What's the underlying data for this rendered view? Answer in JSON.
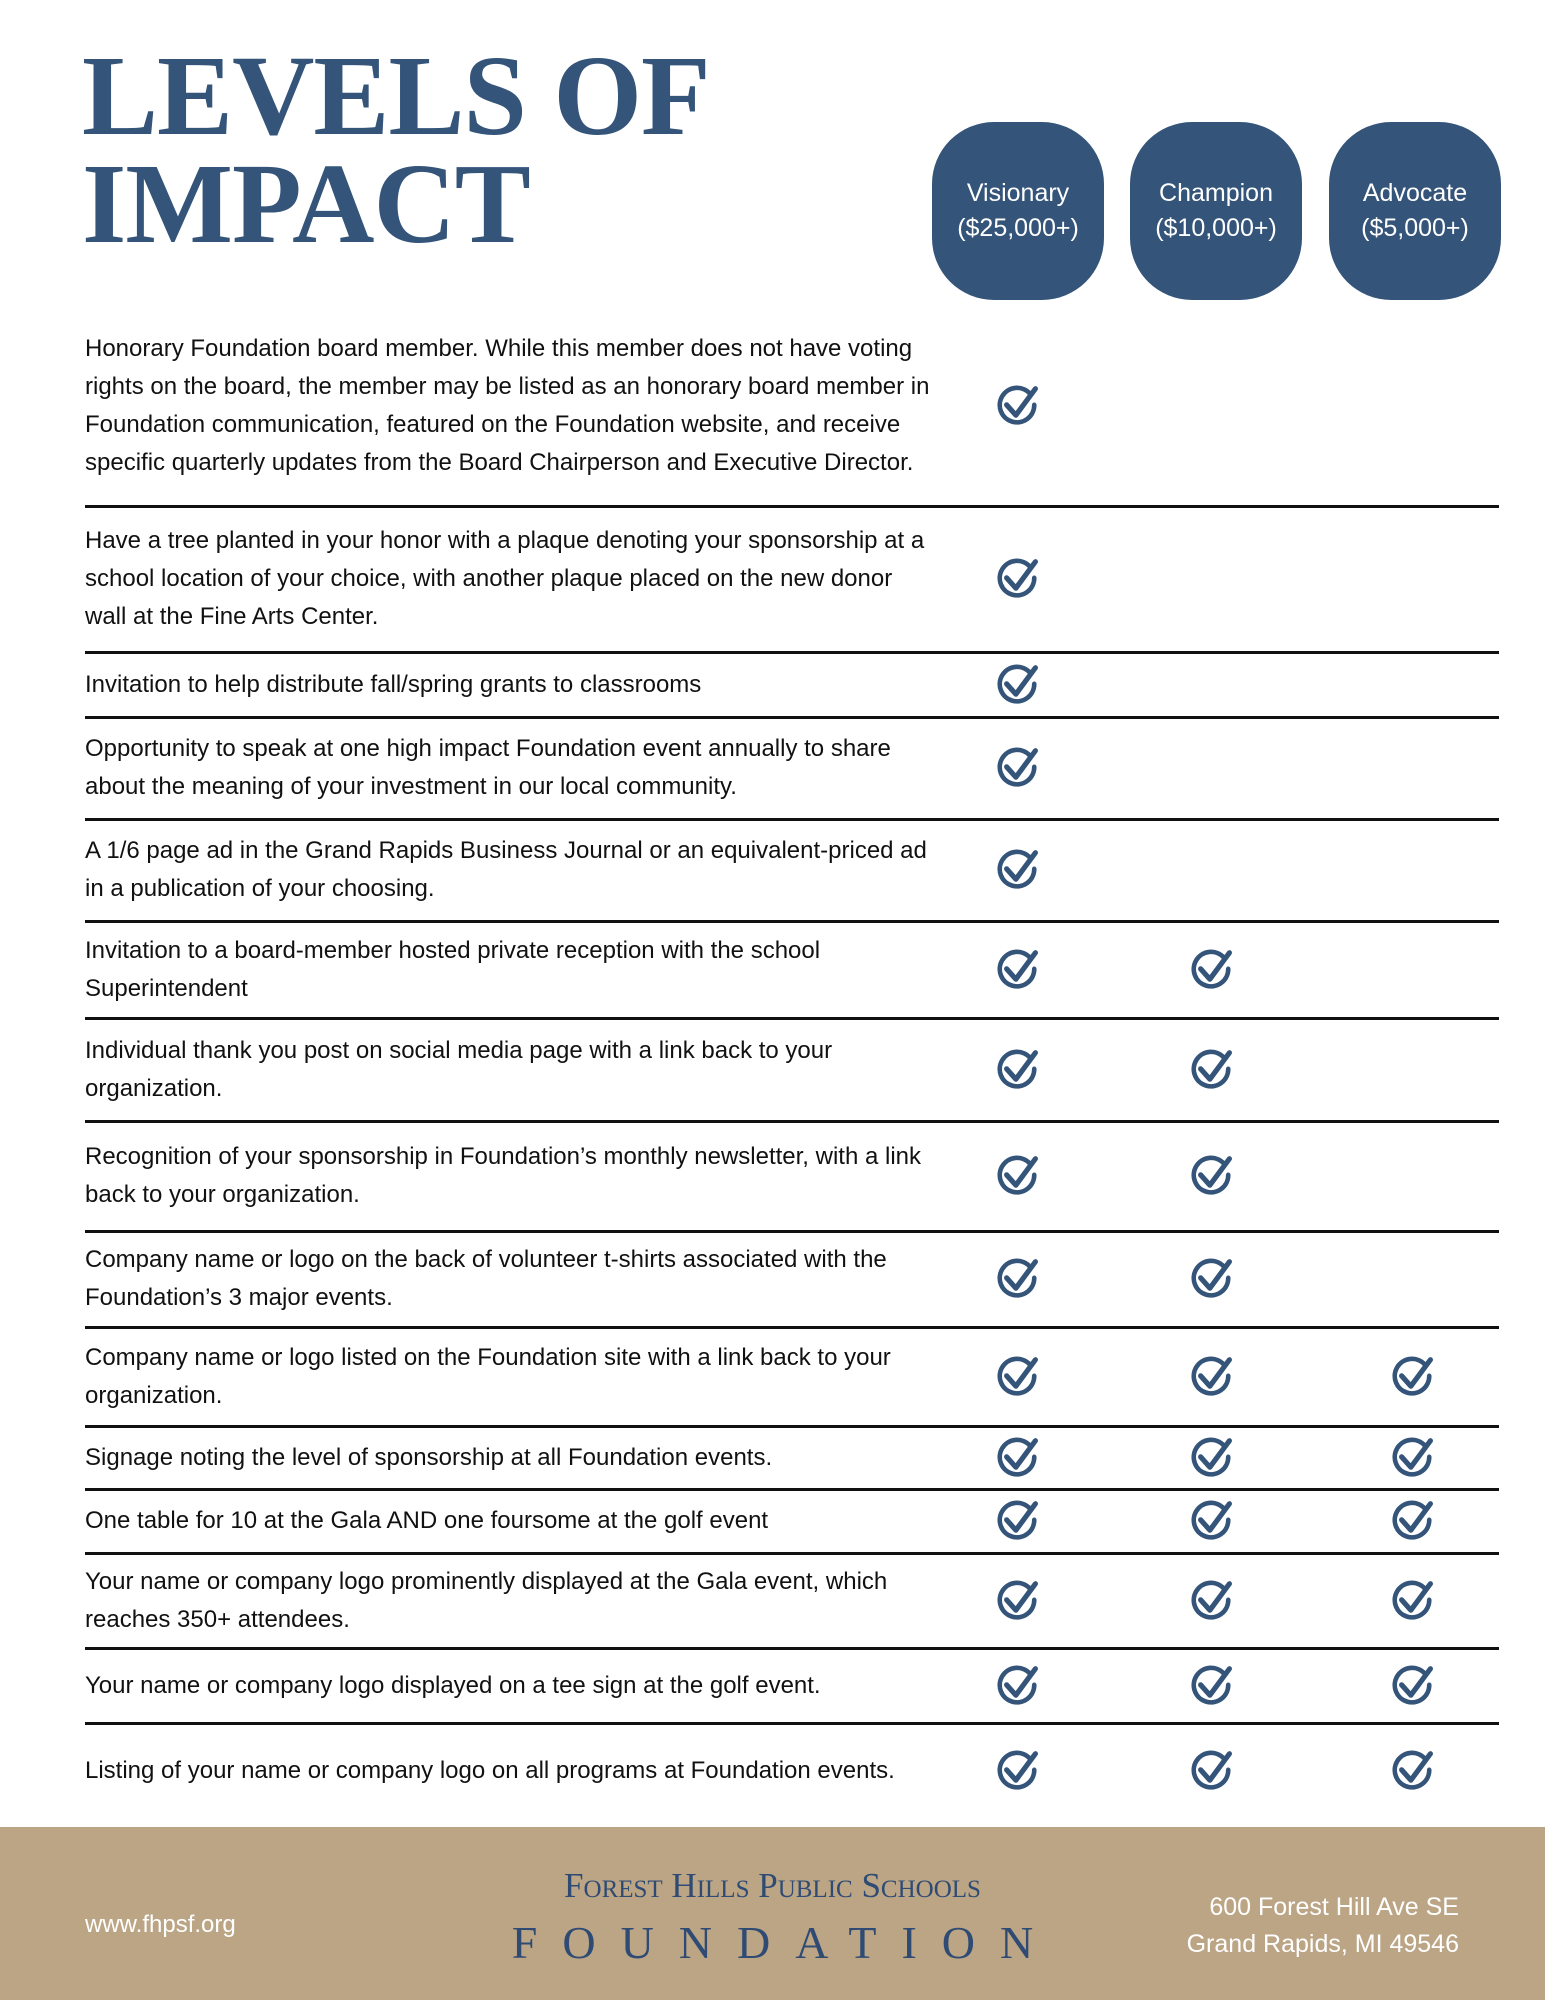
{
  "header": {
    "title": [
      "LEVELS OF",
      "IMPACT"
    ]
  },
  "tiers": [
    {
      "name": "Visionary",
      "amount": "($25,000+)"
    },
    {
      "name": "Champion",
      "amount": "($10,000+)"
    },
    {
      "name": "Advocate",
      "amount": "($5,000+)"
    }
  ],
  "table": {
    "rows": [
      {
        "text": "Honorary Foundation board member. While this member does not have voting rights on the board, the member may be listed as an honorary board member in Foundation communication, featured on the Foundation website, and receive specific quarterly updates from the Board Chairperson and Executive Director.",
        "levels": [
          true,
          false,
          false
        ]
      },
      {
        "text": "Have a tree planted in your honor with a plaque denoting your sponsorship at a school location of your choice, with another plaque placed on the new donor wall at the Fine Arts Center.",
        "levels": [
          true,
          false,
          false
        ]
      },
      {
        "text": "Invitation to help distribute fall/spring grants to classrooms",
        "levels": [
          true,
          false,
          false
        ]
      },
      {
        "text": "Opportunity to speak at one high impact Foundation event annually to share about the meaning of your investment in our local community.",
        "levels": [
          true,
          false,
          false
        ]
      },
      {
        "text": "A 1/6 page ad in the Grand Rapids Business Journal or an equivalent-priced ad in a publication of your choosing.",
        "levels": [
          true,
          false,
          false
        ]
      },
      {
        "text": "Invitation to a board-member hosted private reception with the school Superintendent",
        "levels": [
          true,
          true,
          false
        ]
      },
      {
        "text": "Individual thank you post on social media page with a link back to your organization.",
        "levels": [
          true,
          true,
          false
        ]
      },
      {
        "text": "Recognition of your sponsorship in Foundation’s monthly newsletter, with a link back to your organization.",
        "levels": [
          true,
          true,
          false
        ]
      },
      {
        "text": "Company name or logo on the back of volunteer t-shirts associated with the Foundation’s 3 major events.",
        "levels": [
          true,
          true,
          false
        ]
      },
      {
        "text": "Company name or logo listed on the Foundation site with a link back to your organization.",
        "levels": [
          true,
          true,
          true
        ]
      },
      {
        "text": "Signage noting the level of sponsorship at all Foundation events.",
        "levels": [
          true,
          true,
          true
        ]
      },
      {
        "text": "One table for 10 at the Gala AND one foursome at the golf event",
        "levels": [
          true,
          true,
          true
        ]
      },
      {
        "text": "Your name or company logo prominently displayed at the Gala event, which reaches 350+ attendees.",
        "levels": [
          true,
          true,
          true
        ]
      },
      {
        "text": "Your name or company logo displayed on a tee sign at the golf event.",
        "levels": [
          true,
          true,
          true
        ]
      },
      {
        "text": "Listing of your name or company logo on all programs at Foundation events.",
        "levels": [
          true,
          true,
          true
        ]
      }
    ]
  },
  "footer": {
    "website": "www.fhpsf.org",
    "org_name": "Forest Hills Public Schools",
    "org_sub": "FOUNDATION",
    "address": [
      "600 Forest Hill Ave SE",
      "Grand Rapids, MI 49546"
    ]
  }
}
